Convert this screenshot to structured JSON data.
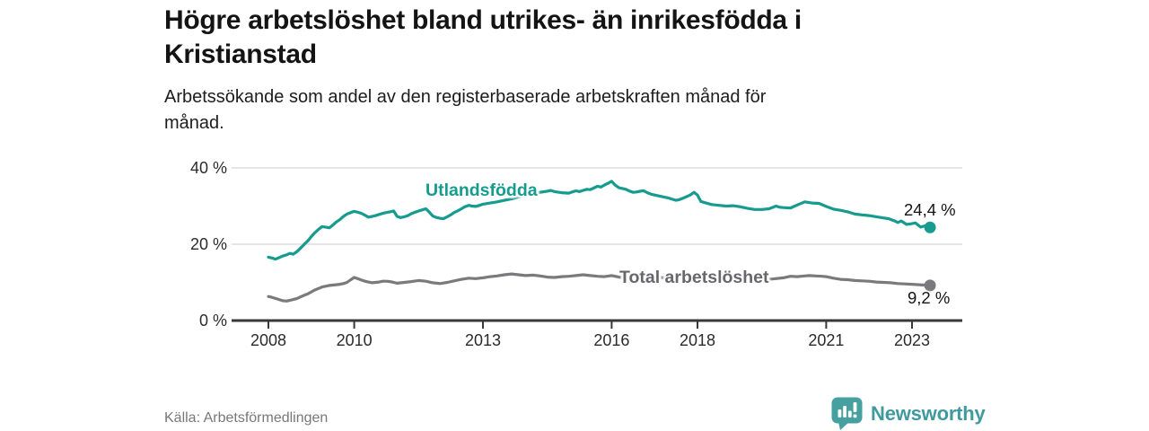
{
  "header": {
    "title_lines": [
      "Högre arbetslöshet bland utrikes- än inrikesfödda i",
      "Kristianstad"
    ],
    "subtitle_lines": [
      "Arbetssökande som andel av den registerbaserade arbetskraften månad för",
      "månad."
    ]
  },
  "footer": {
    "source": "Källa: Arbetsförmedlingen",
    "brand": "Newsworthy"
  },
  "colors": {
    "teal_line": "#169B8E",
    "gray_line": "#7A7A7D",
    "gray_label": "#68686C",
    "axis": "#38383A",
    "grid": "#DEDEDE",
    "text": "#141414",
    "logo_teal": "#46A0A0",
    "wordmark_teal": "#3F9A9E"
  },
  "chart_data": {
    "type": "line",
    "title": "Högre arbetslöshet bland utrikes- än inrikesfödda i Kristianstad",
    "subtitle": "Arbetssökande som andel av den registerbaserade arbetskraften månad för månad.",
    "xlabel": "",
    "ylabel": "",
    "grid": "horizontal",
    "legend_position": "inline",
    "xlim": [
      2007.15,
      2024.2
    ],
    "ylim": [
      0,
      42
    ],
    "x_ticks": [
      2008,
      2010,
      2013,
      2016,
      2018,
      2021,
      2023
    ],
    "y_ticks": [
      {
        "value": 0,
        "label": "0 %"
      },
      {
        "value": 20,
        "label": "20 %"
      },
      {
        "value": 40,
        "label": "40 %"
      }
    ],
    "series": [
      {
        "name": "Utlandsfödda",
        "color": "#169B8E",
        "end_label": "24,4 %",
        "end_value": 24.4,
        "points": [
          [
            2008.0,
            16.6
          ],
          [
            2008.08,
            16.4
          ],
          [
            2008.17,
            16.1
          ],
          [
            2008.25,
            16.5
          ],
          [
            2008.33,
            16.9
          ],
          [
            2008.42,
            17.2
          ],
          [
            2008.5,
            17.6
          ],
          [
            2008.58,
            17.4
          ],
          [
            2008.67,
            18.1
          ],
          [
            2008.75,
            19.0
          ],
          [
            2008.83,
            19.9
          ],
          [
            2008.92,
            20.9
          ],
          [
            2009.0,
            22.0
          ],
          [
            2009.08,
            23.0
          ],
          [
            2009.17,
            23.9
          ],
          [
            2009.25,
            24.6
          ],
          [
            2009.33,
            24.5
          ],
          [
            2009.42,
            24.3
          ],
          [
            2009.5,
            25.0
          ],
          [
            2009.58,
            25.8
          ],
          [
            2009.67,
            26.5
          ],
          [
            2009.75,
            27.3
          ],
          [
            2009.83,
            27.9
          ],
          [
            2009.92,
            28.3
          ],
          [
            2010.0,
            28.6
          ],
          [
            2010.08,
            28.4
          ],
          [
            2010.17,
            28.1
          ],
          [
            2010.25,
            27.6
          ],
          [
            2010.33,
            27.1
          ],
          [
            2010.42,
            27.3
          ],
          [
            2010.5,
            27.5
          ],
          [
            2010.58,
            27.8
          ],
          [
            2010.67,
            28.1
          ],
          [
            2010.75,
            28.3
          ],
          [
            2010.83,
            28.5
          ],
          [
            2010.92,
            28.7
          ],
          [
            2011.0,
            27.3
          ],
          [
            2011.08,
            27.0
          ],
          [
            2011.17,
            27.2
          ],
          [
            2011.25,
            27.5
          ],
          [
            2011.33,
            28.0
          ],
          [
            2011.42,
            28.4
          ],
          [
            2011.5,
            28.7
          ],
          [
            2011.58,
            29.0
          ],
          [
            2011.67,
            29.3
          ],
          [
            2011.75,
            28.4
          ],
          [
            2011.83,
            27.4
          ],
          [
            2011.92,
            27.0
          ],
          [
            2012.0,
            26.8
          ],
          [
            2012.08,
            26.7
          ],
          [
            2012.17,
            27.2
          ],
          [
            2012.25,
            27.7
          ],
          [
            2012.33,
            28.3
          ],
          [
            2012.42,
            28.8
          ],
          [
            2012.5,
            29.3
          ],
          [
            2012.58,
            29.8
          ],
          [
            2012.67,
            30.2
          ],
          [
            2012.75,
            30.0
          ],
          [
            2012.83,
            29.9
          ],
          [
            2012.92,
            30.2
          ],
          [
            2013.0,
            30.5
          ],
          [
            2013.17,
            30.8
          ],
          [
            2013.33,
            31.1
          ],
          [
            2013.5,
            31.5
          ],
          [
            2013.67,
            31.9
          ],
          [
            2013.83,
            32.4
          ],
          [
            2014.0,
            32.8
          ],
          [
            2014.17,
            33.2
          ],
          [
            2014.33,
            33.6
          ],
          [
            2014.5,
            33.9
          ],
          [
            2014.58,
            34.1
          ],
          [
            2014.67,
            33.8
          ],
          [
            2014.83,
            33.5
          ],
          [
            2015.0,
            33.4
          ],
          [
            2015.08,
            33.7
          ],
          [
            2015.17,
            34.0
          ],
          [
            2015.25,
            33.8
          ],
          [
            2015.33,
            34.1
          ],
          [
            2015.42,
            34.4
          ],
          [
            2015.5,
            34.3
          ],
          [
            2015.58,
            34.7
          ],
          [
            2015.67,
            35.2
          ],
          [
            2015.75,
            35.0
          ],
          [
            2015.83,
            35.5
          ],
          [
            2015.92,
            36.0
          ],
          [
            2016.0,
            36.5
          ],
          [
            2016.08,
            35.5
          ],
          [
            2016.17,
            34.8
          ],
          [
            2016.25,
            34.6
          ],
          [
            2016.33,
            34.4
          ],
          [
            2016.42,
            33.9
          ],
          [
            2016.5,
            33.6
          ],
          [
            2016.58,
            33.7
          ],
          [
            2016.67,
            33.9
          ],
          [
            2016.75,
            34.0
          ],
          [
            2016.83,
            33.5
          ],
          [
            2016.92,
            33.1
          ],
          [
            2017.0,
            32.9
          ],
          [
            2017.17,
            32.5
          ],
          [
            2017.33,
            32.1
          ],
          [
            2017.5,
            31.5
          ],
          [
            2017.58,
            31.7
          ],
          [
            2017.67,
            32.1
          ],
          [
            2017.75,
            32.5
          ],
          [
            2017.83,
            32.9
          ],
          [
            2017.92,
            33.6
          ],
          [
            2018.0,
            32.9
          ],
          [
            2018.08,
            31.2
          ],
          [
            2018.17,
            30.9
          ],
          [
            2018.33,
            30.4
          ],
          [
            2018.5,
            30.2
          ],
          [
            2018.67,
            30.0
          ],
          [
            2018.83,
            30.1
          ],
          [
            2019.0,
            29.8
          ],
          [
            2019.17,
            29.4
          ],
          [
            2019.33,
            29.1
          ],
          [
            2019.5,
            29.1
          ],
          [
            2019.67,
            29.3
          ],
          [
            2019.83,
            30.0
          ],
          [
            2019.92,
            29.7
          ],
          [
            2020.0,
            29.6
          ],
          [
            2020.17,
            29.5
          ],
          [
            2020.33,
            30.3
          ],
          [
            2020.5,
            31.1
          ],
          [
            2020.67,
            30.8
          ],
          [
            2020.83,
            30.7
          ],
          [
            2021.0,
            29.9
          ],
          [
            2021.17,
            29.2
          ],
          [
            2021.33,
            28.9
          ],
          [
            2021.5,
            28.5
          ],
          [
            2021.67,
            27.9
          ],
          [
            2021.83,
            27.7
          ],
          [
            2022.0,
            27.5
          ],
          [
            2022.17,
            27.2
          ],
          [
            2022.33,
            26.9
          ],
          [
            2022.45,
            26.7
          ],
          [
            2022.58,
            26.2
          ],
          [
            2022.67,
            25.7
          ],
          [
            2022.75,
            26.1
          ],
          [
            2022.87,
            25.2
          ],
          [
            2023.0,
            25.4
          ],
          [
            2023.08,
            25.6
          ],
          [
            2023.2,
            24.5
          ],
          [
            2023.3,
            24.8
          ],
          [
            2023.42,
            24.4
          ]
        ]
      },
      {
        "name": "Total arbetslöshet",
        "color": "#7A7A7D",
        "end_label": "9,2 %",
        "end_value": 9.2,
        "points": [
          [
            2008.0,
            6.3
          ],
          [
            2008.08,
            6.1
          ],
          [
            2008.17,
            5.8
          ],
          [
            2008.25,
            5.5
          ],
          [
            2008.33,
            5.2
          ],
          [
            2008.42,
            5.1
          ],
          [
            2008.5,
            5.3
          ],
          [
            2008.58,
            5.5
          ],
          [
            2008.67,
            5.8
          ],
          [
            2008.75,
            6.2
          ],
          [
            2008.83,
            6.6
          ],
          [
            2008.92,
            7.0
          ],
          [
            2009.0,
            7.5
          ],
          [
            2009.08,
            8.0
          ],
          [
            2009.17,
            8.4
          ],
          [
            2009.25,
            8.8
          ],
          [
            2009.33,
            9.0
          ],
          [
            2009.42,
            9.2
          ],
          [
            2009.5,
            9.3
          ],
          [
            2009.58,
            9.4
          ],
          [
            2009.67,
            9.5
          ],
          [
            2009.75,
            9.7
          ],
          [
            2009.83,
            10.0
          ],
          [
            2009.92,
            10.7
          ],
          [
            2010.0,
            11.3
          ],
          [
            2010.08,
            11.0
          ],
          [
            2010.17,
            10.6
          ],
          [
            2010.25,
            10.3
          ],
          [
            2010.33,
            10.1
          ],
          [
            2010.42,
            9.9
          ],
          [
            2010.5,
            10.0
          ],
          [
            2010.58,
            10.1
          ],
          [
            2010.67,
            10.3
          ],
          [
            2010.75,
            10.3
          ],
          [
            2010.83,
            10.2
          ],
          [
            2010.92,
            10.0
          ],
          [
            2011.0,
            9.8
          ],
          [
            2011.17,
            10.0
          ],
          [
            2011.33,
            10.2
          ],
          [
            2011.5,
            10.5
          ],
          [
            2011.67,
            10.3
          ],
          [
            2011.83,
            9.9
          ],
          [
            2012.0,
            9.7
          ],
          [
            2012.17,
            10.0
          ],
          [
            2012.33,
            10.4
          ],
          [
            2012.5,
            10.8
          ],
          [
            2012.67,
            11.1
          ],
          [
            2012.83,
            11.0
          ],
          [
            2013.0,
            11.2
          ],
          [
            2013.17,
            11.5
          ],
          [
            2013.33,
            11.7
          ],
          [
            2013.5,
            12.0
          ],
          [
            2013.67,
            12.2
          ],
          [
            2013.83,
            12.0
          ],
          [
            2014.0,
            11.8
          ],
          [
            2014.17,
            11.9
          ],
          [
            2014.33,
            11.7
          ],
          [
            2014.5,
            11.4
          ],
          [
            2014.67,
            11.3
          ],
          [
            2014.83,
            11.5
          ],
          [
            2015.0,
            11.6
          ],
          [
            2015.17,
            11.8
          ],
          [
            2015.33,
            12.0
          ],
          [
            2015.5,
            11.8
          ],
          [
            2015.67,
            11.6
          ],
          [
            2015.83,
            11.5
          ],
          [
            2016.0,
            11.8
          ],
          [
            2016.17,
            11.4
          ],
          [
            2016.33,
            11.2
          ],
          [
            2016.5,
            11.1
          ],
          [
            2016.67,
            11.3
          ],
          [
            2016.83,
            11.2
          ],
          [
            2017.0,
            11.4
          ],
          [
            2017.25,
            11.2
          ],
          [
            2017.5,
            11.0
          ],
          [
            2017.75,
            11.1
          ],
          [
            2018.0,
            11.2
          ],
          [
            2018.25,
            11.3
          ],
          [
            2018.5,
            11.2
          ],
          [
            2018.75,
            11.1
          ],
          [
            2019.0,
            11.0
          ],
          [
            2019.25,
            10.9
          ],
          [
            2019.5,
            10.8
          ],
          [
            2019.75,
            10.9
          ],
          [
            2020.0,
            11.2
          ],
          [
            2020.17,
            11.6
          ],
          [
            2020.33,
            11.5
          ],
          [
            2020.5,
            11.7
          ],
          [
            2020.6,
            11.8
          ],
          [
            2020.75,
            11.7
          ],
          [
            2020.9,
            11.6
          ],
          [
            2021.0,
            11.5
          ],
          [
            2021.17,
            11.1
          ],
          [
            2021.33,
            10.8
          ],
          [
            2021.5,
            10.7
          ],
          [
            2021.67,
            10.5
          ],
          [
            2021.83,
            10.4
          ],
          [
            2022.0,
            10.3
          ],
          [
            2022.17,
            10.1
          ],
          [
            2022.33,
            10.0
          ],
          [
            2022.5,
            9.9
          ],
          [
            2022.67,
            9.7
          ],
          [
            2022.83,
            9.6
          ],
          [
            2023.0,
            9.5
          ],
          [
            2023.17,
            9.4
          ],
          [
            2023.3,
            9.3
          ],
          [
            2023.42,
            9.2
          ]
        ]
      }
    ]
  }
}
